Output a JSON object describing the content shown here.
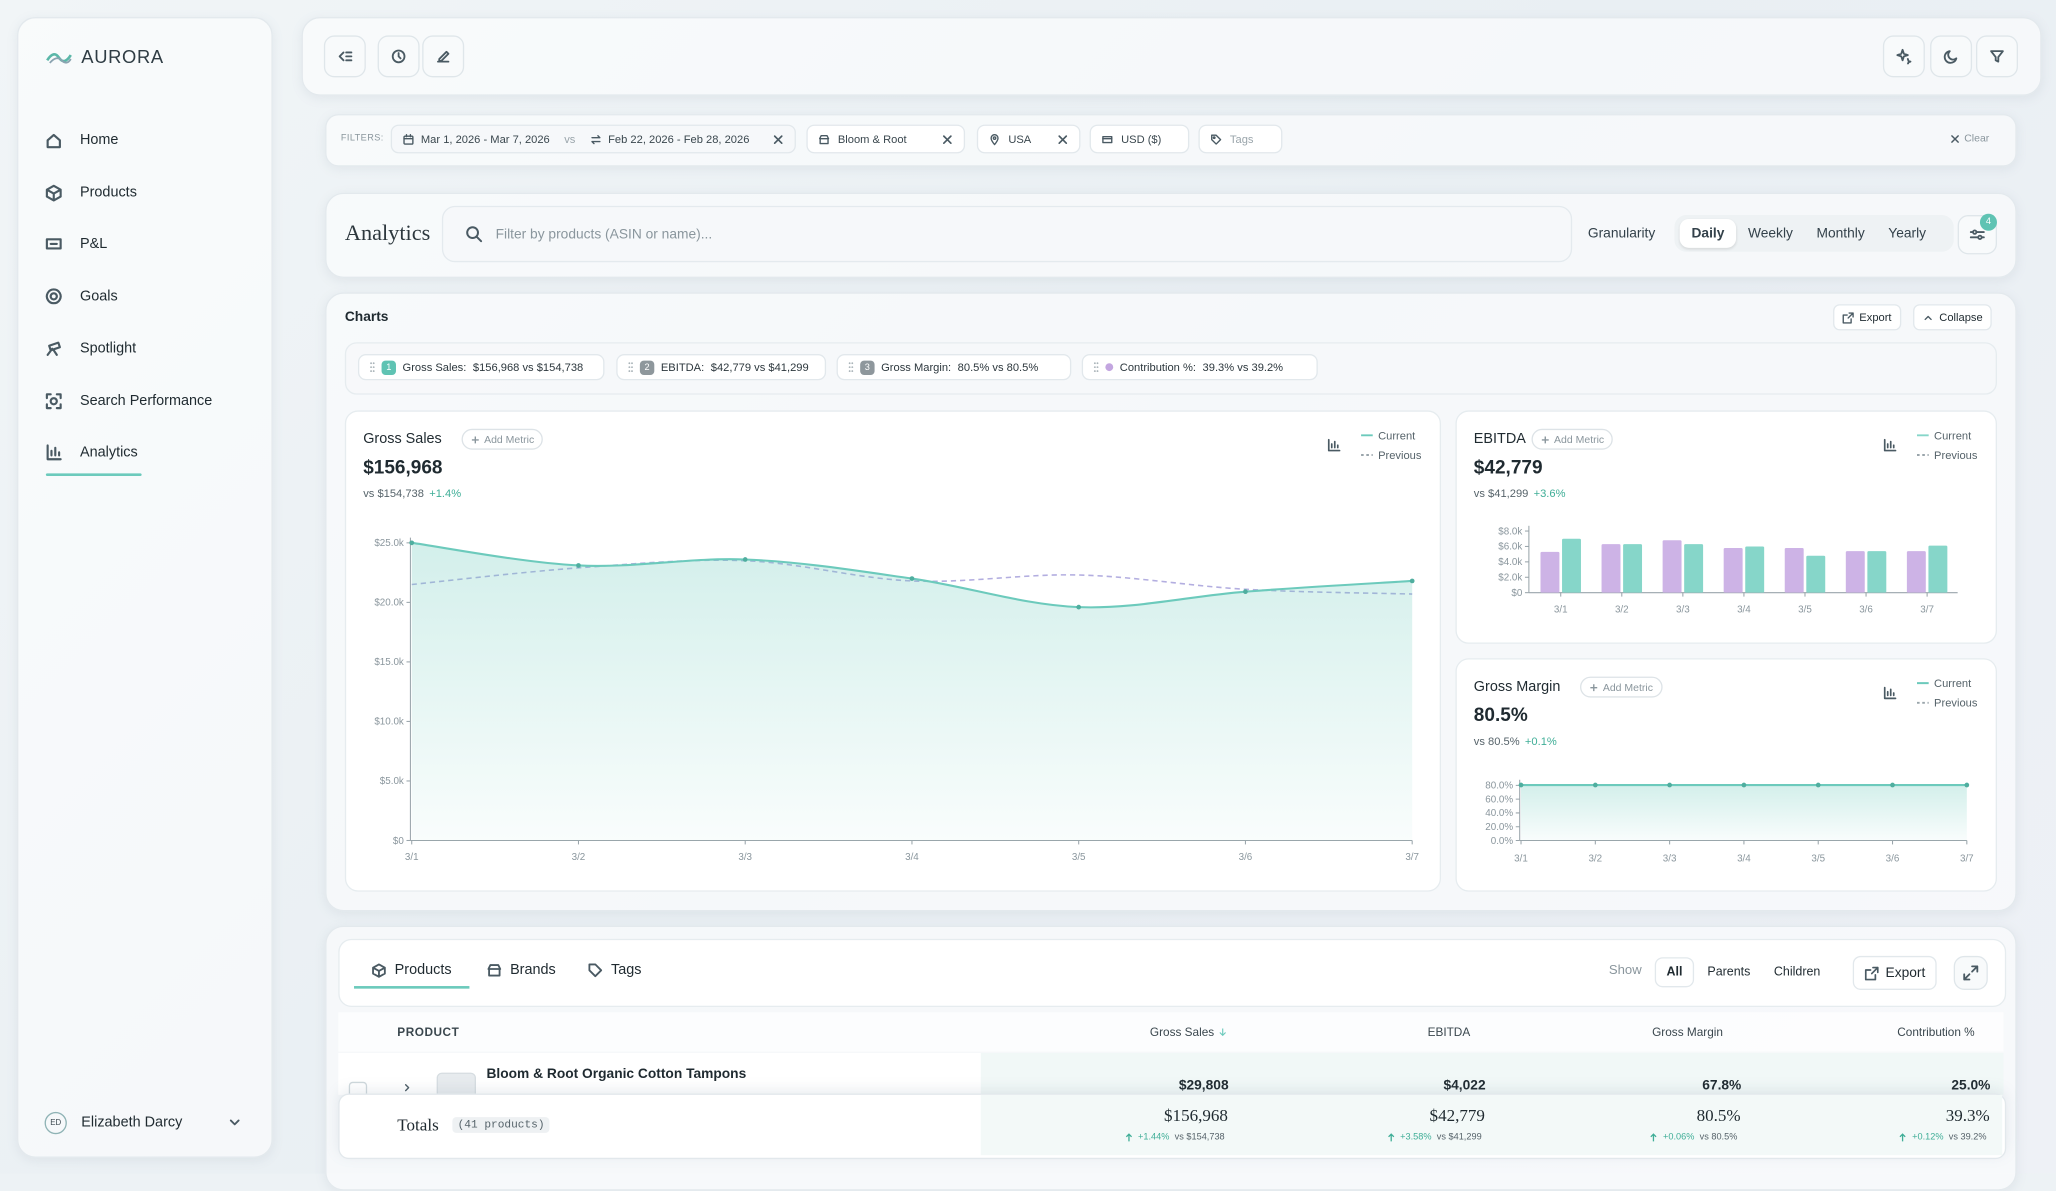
{
  "sidebar": {
    "brand": "AURORA",
    "nav": [
      "Home",
      "Products",
      "P&L",
      "Goals",
      "Spotlight",
      "Search Performance",
      "Analytics"
    ],
    "user": {
      "initials": "ED",
      "name": "Elizabeth Darcy"
    }
  },
  "filters": {
    "label": "FILTERS:",
    "date_current": "Mar 1, 2026 - Mar 7, 2026",
    "vs": "vs",
    "date_previous": "Feb 22, 2026 - Feb 28, 2026",
    "brand": "Bloom & Root",
    "country": "USA",
    "currency": "USD ($)",
    "tags": "Tags",
    "clear": "Clear"
  },
  "analytics": {
    "title": "Analytics",
    "search_placeholder": "Filter by products (ASIN or name)...",
    "granularity_label": "Granularity",
    "granularity_options": [
      "Daily",
      "Weekly",
      "Monthly",
      "Yearly"
    ],
    "filter_count": "4"
  },
  "charts_panel": {
    "title": "Charts",
    "export": "Export",
    "collapse": "Collapse",
    "chips": [
      {
        "index": "1",
        "name": "Gross Sales:",
        "text": "$156,968 vs $154,738"
      },
      {
        "index": "2",
        "name": "EBITDA:",
        "text": "$42,779 vs $41,299"
      },
      {
        "index": "3",
        "name": "Gross Margin:",
        "text": "80.5% vs 80.5%"
      },
      {
        "name": "Contribution %:",
        "text": "39.3% vs 39.2%"
      }
    ]
  },
  "chart_data": [
    {
      "type": "line",
      "title": "Gross Sales",
      "add_metric": "Add Metric",
      "headline": "$156,968",
      "comparison": "vs $154,738",
      "change": "+1.4%",
      "categories": [
        "3/1",
        "3/2",
        "3/3",
        "3/4",
        "3/5",
        "3/6",
        "3/7"
      ],
      "series": [
        {
          "name": "Current",
          "color": "#6ccabc",
          "values": [
            25000,
            23100,
            23600,
            22000,
            19600,
            20900,
            21800
          ]
        },
        {
          "name": "Previous",
          "color": "#b3aee0",
          "values": [
            21500,
            22900,
            23500,
            21800,
            22300,
            21100,
            20700
          ]
        }
      ],
      "ylim": [
        0,
        25000
      ],
      "yticks": [
        {
          "value": 0,
          "label": "$0"
        },
        {
          "value": 5000,
          "label": "$5.0k"
        },
        {
          "value": 10000,
          "label": "$10.0k"
        },
        {
          "value": 15000,
          "label": "$15.0k"
        },
        {
          "value": 20000,
          "label": "$20.0k"
        },
        {
          "value": 25000,
          "label": "$25.0k"
        }
      ]
    },
    {
      "type": "bar",
      "title": "EBITDA",
      "add_metric": "Add Metric",
      "headline": "$42,779",
      "comparison": "vs $41,299",
      "change": "+3.6%",
      "categories": [
        "3/1",
        "3/2",
        "3/3",
        "3/4",
        "3/5",
        "3/6",
        "3/7"
      ],
      "series": [
        {
          "name": "Current",
          "color": "#86d6c9",
          "values": [
            7000,
            6300,
            6300,
            6000,
            4800,
            5400,
            6100
          ]
        },
        {
          "name": "Previous",
          "color": "#cdb3e6",
          "values": [
            5300,
            6300,
            6800,
            5800,
            5800,
            5400,
            5400
          ]
        }
      ],
      "ylim": [
        0,
        8000
      ],
      "yticks": [
        {
          "value": 0,
          "label": "$0"
        },
        {
          "value": 2000,
          "label": "$2.0k"
        },
        {
          "value": 4000,
          "label": "$4.0k"
        },
        {
          "value": 6000,
          "label": "$6.0k"
        },
        {
          "value": 8000,
          "label": "$8.0k"
        }
      ]
    },
    {
      "type": "line",
      "title": "Gross Margin",
      "add_metric": "Add Metric",
      "headline": "80.5%",
      "comparison": "vs 80.5%",
      "change": "+0.1%",
      "categories": [
        "3/1",
        "3/2",
        "3/3",
        "3/4",
        "3/5",
        "3/6",
        "3/7"
      ],
      "series": [
        {
          "name": "Current",
          "color": "#6ccabc",
          "values": [
            80.5,
            80.5,
            80.5,
            80.5,
            80.5,
            80.5,
            80.5
          ]
        },
        {
          "name": "Previous",
          "color": "#b3aee0",
          "values": [
            80.5,
            80.5,
            80.5,
            80.5,
            80.5,
            80.5,
            80.5
          ]
        }
      ],
      "ylim": [
        0,
        80.5
      ],
      "yticks": [
        {
          "value": 0,
          "label": "0.0%"
        },
        {
          "value": 20,
          "label": "20.0%"
        },
        {
          "value": 40,
          "label": "40.0%"
        },
        {
          "value": 60,
          "label": "60.0%"
        },
        {
          "value": 80,
          "label": "80.0%"
        }
      ]
    }
  ],
  "table": {
    "tabs": [
      "Products",
      "Brands",
      "Tags"
    ],
    "show_label": "Show",
    "show_options": [
      "All",
      "Parents",
      "Children"
    ],
    "export": "Export",
    "columns": [
      "PRODUCT",
      "Gross Sales",
      "EBITDA",
      "Gross Margin",
      "Contribution %"
    ],
    "rows": [
      [
        "Bloom & Root Organic Cotton Tampons",
        "$29,808",
        "$4,022",
        "67.8%",
        "25.0%"
      ]
    ],
    "totals": {
      "label": "Totals",
      "count": "(41 products)",
      "cells": [
        {
          "value": "$156,968",
          "change": "+1.44%",
          "vs": "vs $154,738"
        },
        {
          "value": "$42,779",
          "change": "+3.58%",
          "vs": "vs $41,299"
        },
        {
          "value": "80.5%",
          "change": "+0.06%",
          "vs": "vs 80.5%"
        },
        {
          "value": "39.3%",
          "change": "+0.12%",
          "vs": "vs 39.2%"
        }
      ]
    }
  }
}
